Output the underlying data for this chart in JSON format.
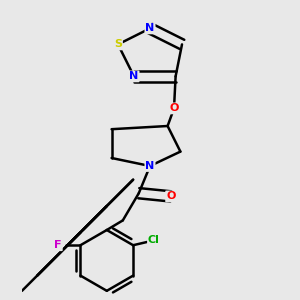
{
  "background_color": "#e8e8e8",
  "bond_color": "#000000",
  "atom_colors": {
    "N": "#0000ff",
    "O": "#ff0000",
    "S": "#cccc00",
    "F": "#cc00cc",
    "Cl": "#00aa00",
    "C": "#000000"
  },
  "title": "",
  "figsize": [
    3.0,
    3.0
  ],
  "dpi": 100
}
